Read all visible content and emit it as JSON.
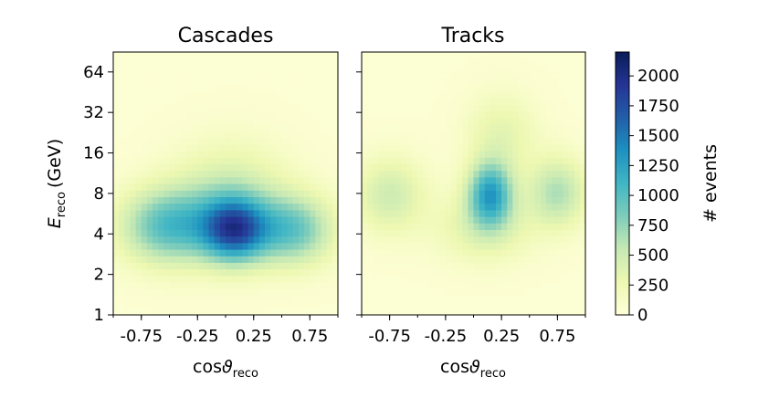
{
  "chart_data": {
    "type": "heatmap",
    "x_scale": "linear",
    "y_scale": "log2",
    "xlim": [
      -1,
      1
    ],
    "ylim": [
      1,
      90
    ],
    "xlabel_main": "cos",
    "xlabel_symbol": "ϑ",
    "xlabel_sub": "reco",
    "ylabel_main": "E",
    "ylabel_sub": "reco",
    "ylabel_unit": "(GeV)",
    "x_ticks": [
      -0.75,
      -0.25,
      0.25,
      0.75
    ],
    "x_tick_labels": [
      "-0.75",
      "-0.25",
      "0.25",
      "0.75"
    ],
    "y_ticks": [
      1,
      2,
      4,
      8,
      16,
      32,
      64
    ],
    "y_tick_labels": [
      "1",
      "2",
      "4",
      "8",
      "16",
      "32",
      "64"
    ],
    "colorbar": {
      "label": "# events",
      "min": 0,
      "max": 2200,
      "ticks": [
        0,
        250,
        500,
        750,
        1000,
        1250,
        1500,
        1750,
        2000
      ],
      "tick_labels": [
        "0",
        "250",
        "500",
        "750",
        "1000",
        "1250",
        "1500",
        "1750",
        "2000"
      ],
      "colors": [
        "#ffffd9",
        "#edf8b1",
        "#c7e9b4",
        "#7fcdbb",
        "#41b6c4",
        "#1d91c0",
        "#225ea8",
        "#253494",
        "#081d58"
      ]
    },
    "panels": [
      {
        "title": "Cascades",
        "description": "broad blob peaking near cos=0.1, E~4.5 GeV",
        "blobs": [
          {
            "cos": 0.08,
            "energy_gev": 4.3,
            "peak_events": 1450,
            "sigma_cos": 0.2,
            "sigma_log2E": 0.55
          },
          {
            "cos": -0.5,
            "energy_gev": 4.6,
            "peak_events": 950,
            "sigma_cos": 0.3,
            "sigma_log2E": 0.65
          },
          {
            "cos": 0.6,
            "energy_gev": 4.3,
            "peak_events": 850,
            "sigma_cos": 0.25,
            "sigma_log2E": 0.6
          },
          {
            "cos": 0.05,
            "energy_gev": 7.5,
            "peak_events": 450,
            "sigma_cos": 0.35,
            "sigma_log2E": 0.9
          }
        ]
      },
      {
        "title": "Tracks",
        "description": "peak near cos=0.15, E~8 GeV with side lobes",
        "blobs": [
          {
            "cos": 0.15,
            "energy_gev": 8.0,
            "peak_events": 1150,
            "sigma_cos": 0.14,
            "sigma_log2E": 0.55
          },
          {
            "cos": 0.75,
            "energy_gev": 8.2,
            "peak_events": 600,
            "sigma_cos": 0.18,
            "sigma_log2E": 0.6
          },
          {
            "cos": -0.75,
            "energy_gev": 7.8,
            "peak_events": 450,
            "sigma_cos": 0.22,
            "sigma_log2E": 0.65
          },
          {
            "cos": 0.25,
            "energy_gev": 22.0,
            "peak_events": 300,
            "sigma_cos": 0.22,
            "sigma_log2E": 0.7
          },
          {
            "cos": 0.1,
            "energy_gev": 4.5,
            "peak_events": 350,
            "sigma_cos": 0.3,
            "sigma_log2E": 0.6
          }
        ]
      }
    ]
  }
}
